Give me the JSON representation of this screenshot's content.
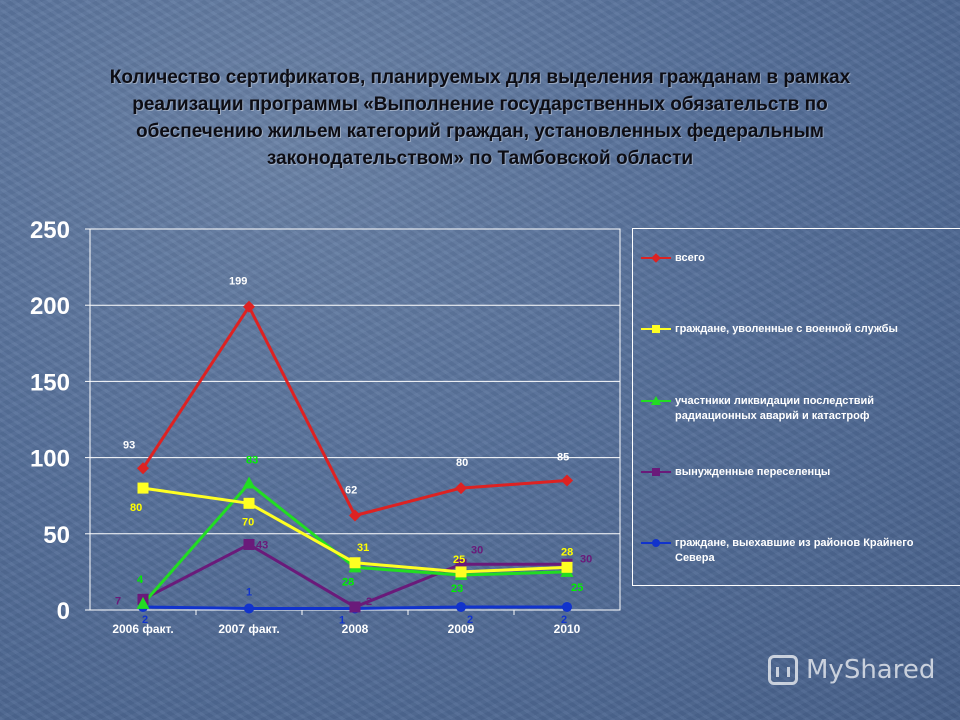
{
  "slide": {
    "title_lines": [
      "Количество сертификатов, планируемых для выделения гражданам в рамках",
      "реализации программы «Выполнение государственных обязательств по",
      "обеспечению жильем категорий граждан, установленных федеральным",
      "законодательством» по Тамбовской области"
    ],
    "watermark": "MyShared"
  },
  "chart_data": {
    "type": "line",
    "title": "Количество сертификатов, планируемых для выделения гражданам в рамках реализации программы «Выполнение государственных обязательств по обеспечению жильем категорий граждан, установленных федеральным законодательством» по Тамбовской области",
    "categories": [
      "2006 факт.",
      "2007 факт.",
      "2008",
      "2009",
      "2010"
    ],
    "ylim": [
      0,
      250
    ],
    "yticks": [
      0,
      50,
      100,
      150,
      200,
      250
    ],
    "grid": true,
    "legend_position": "right",
    "series": [
      {
        "name": "всего",
        "values": [
          93,
          199,
          62,
          80,
          85
        ],
        "color": "#dd2222",
        "marker": "diamond",
        "label_color": "#ffffff"
      },
      {
        "name": "граждане, уволенные с военной службы",
        "values": [
          80,
          70,
          31,
          25,
          28
        ],
        "color": "#ffff22",
        "marker": "square",
        "label_color": "#ffff00"
      },
      {
        "name": "участники ликвидации последствий радиационных аварий и катастроф",
        "values": [
          4,
          83,
          28,
          23,
          25
        ],
        "color": "#22dd22",
        "marker": "triangle",
        "label_color": "#00ee00"
      },
      {
        "name": "вынужденные переселенцы",
        "values": [
          7,
          43,
          2,
          30,
          30
        ],
        "color": "#6a1a7a",
        "marker": "square",
        "label_color": "#6a1a7a"
      },
      {
        "name": "граждане, выехавшие из районов Крайнего Севера",
        "values": [
          2,
          1,
          1,
          2,
          2
        ],
        "color": "#1133cc",
        "marker": "circle",
        "label_color": "#1133cc"
      }
    ]
  }
}
